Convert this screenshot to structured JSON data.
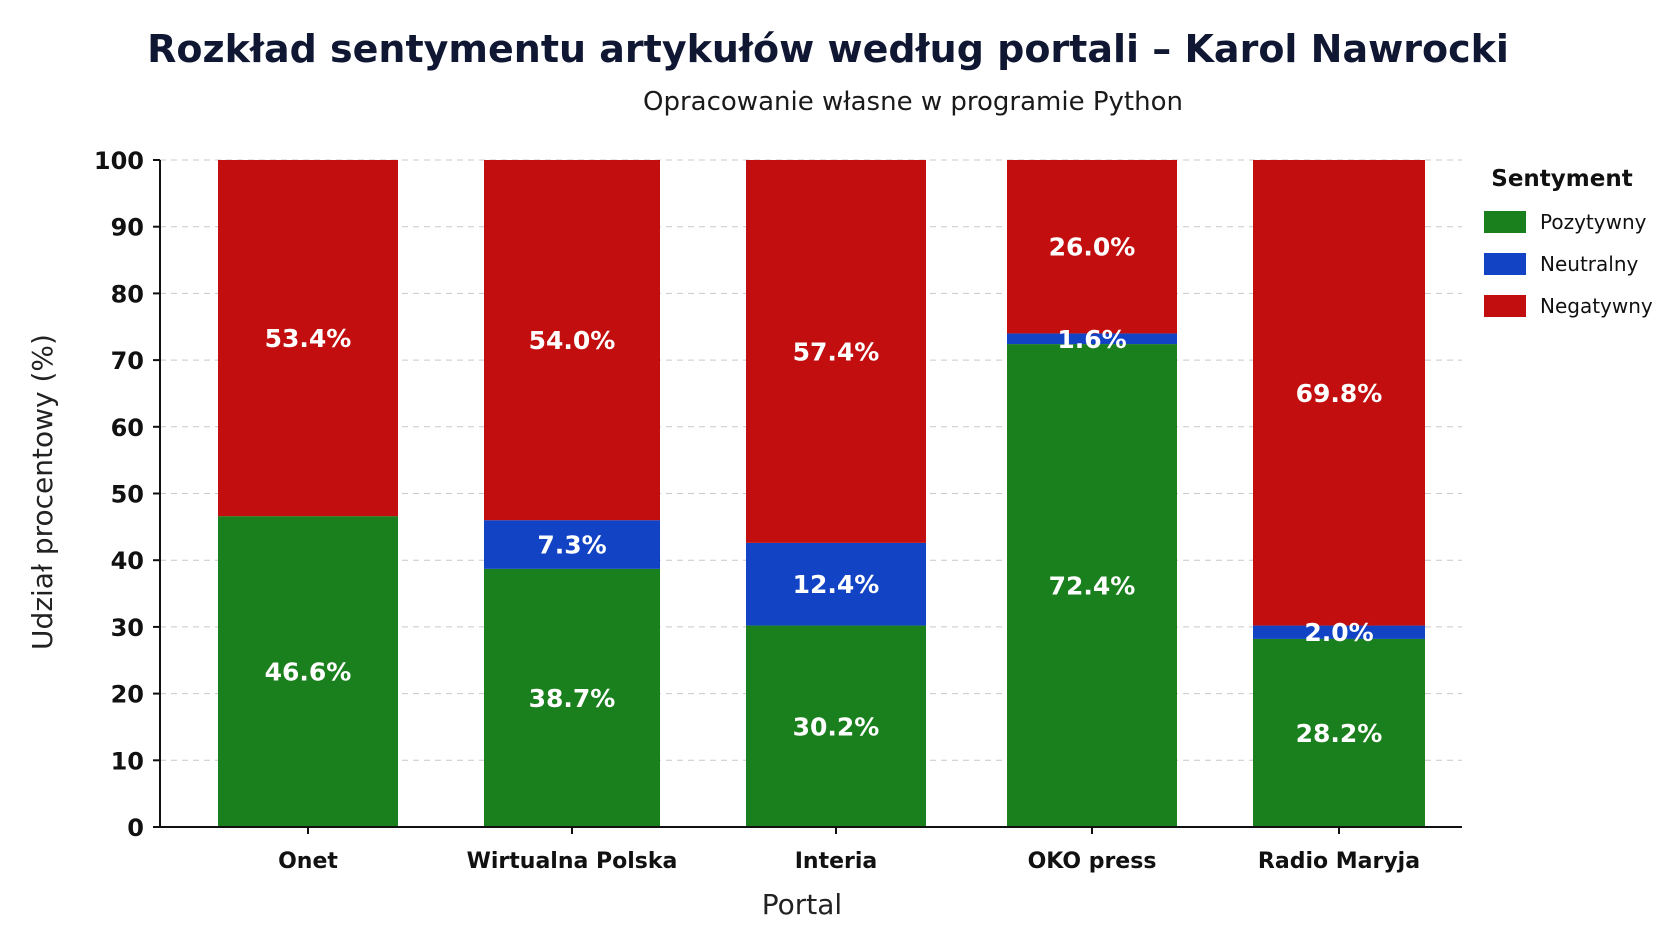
{
  "chart_data": {
    "type": "bar",
    "stacked": true,
    "title": "Rozkład sentymentu artykułów według portali – Karol Nawrocki",
    "subtitle": "Opracowanie własne w programie Python",
    "xlabel": "Portal",
    "ylabel": "Udział procentowy (%)",
    "ylim": [
      0,
      100
    ],
    "yticks": [
      0,
      10,
      20,
      30,
      40,
      50,
      60,
      70,
      80,
      90,
      100
    ],
    "grid": true,
    "legend_title": "Sentyment",
    "legend_position": "right",
    "categories": [
      "Onet",
      "Wirtualna Polska",
      "Interia",
      "OKO press",
      "Radio Maryja"
    ],
    "series": [
      {
        "name": "Pozytywny",
        "color": "#1a7f1d",
        "values": [
          46.6,
          38.7,
          30.2,
          72.4,
          28.2
        ],
        "labels": [
          "46.6%",
          "38.7%",
          "30.2%",
          "72.4%",
          "28.2%"
        ]
      },
      {
        "name": "Neutralny",
        "color": "#1243c4",
        "values": [
          0,
          7.3,
          12.4,
          1.6,
          2.0
        ],
        "labels": [
          "",
          "7.3%",
          "12.4%",
          "1.6%",
          "2.0%"
        ]
      },
      {
        "name": "Negatywny",
        "color": "#c20e0e",
        "values": [
          53.4,
          54.0,
          57.4,
          26.0,
          69.8
        ],
        "labels": [
          "53.4%",
          "54.0%",
          "57.4%",
          "26.0%",
          "69.8%"
        ]
      }
    ]
  }
}
